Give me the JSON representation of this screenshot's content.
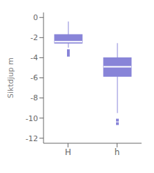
{
  "chart_data": {
    "type": "box",
    "categories": [
      "H",
      "h"
    ],
    "median": [
      -2.4,
      -4.9
    ],
    "q1": [
      -2.55,
      -5.85
    ],
    "q3": [
      -1.7,
      -4.0
    ],
    "whisker_low": [
      -3.0,
      -9.5
    ],
    "whisker_high": [
      -0.4,
      -2.55
    ],
    "fliers": [
      [
        -3.3,
        -3.55,
        -3.75
      ],
      [
        -10.2,
        -10.55
      ]
    ],
    "ylabel": "Siktdjup m",
    "ylim": [
      -12.5,
      0.5
    ],
    "yticks": [
      0,
      -2,
      -4,
      -6,
      -8,
      -10,
      -12
    ],
    "grid": false
  }
}
